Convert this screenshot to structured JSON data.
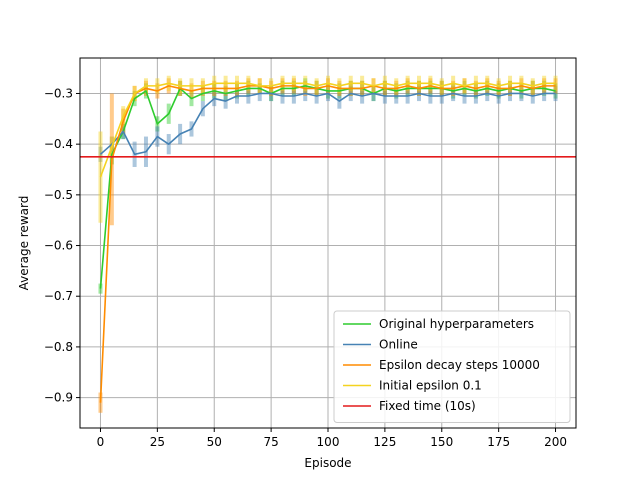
{
  "chart_data": {
    "type": "line",
    "title": "",
    "xlabel": "Episode",
    "ylabel": "Average reward",
    "xlim": [
      -9,
      209
    ],
    "ylim": [
      -0.96,
      -0.23
    ],
    "xticks": [
      0,
      25,
      50,
      75,
      100,
      125,
      150,
      175,
      200
    ],
    "yticks": [
      -0.9,
      -0.8,
      -0.7,
      -0.6,
      -0.5,
      -0.4,
      -0.3
    ],
    "ytick_labels": [
      "−0.9",
      "−0.8",
      "−0.7",
      "−0.6",
      "−0.5",
      "−0.4",
      "−0.3"
    ],
    "grid": true,
    "legend_position": "lower-right",
    "x": [
      0,
      5,
      10,
      15,
      20,
      25,
      30,
      35,
      40,
      45,
      50,
      55,
      60,
      65,
      70,
      75,
      80,
      85,
      90,
      95,
      100,
      105,
      110,
      115,
      120,
      125,
      130,
      135,
      140,
      145,
      150,
      155,
      160,
      165,
      170,
      175,
      180,
      185,
      190,
      195,
      200
    ],
    "series": [
      {
        "name": "Original hyperparameters",
        "color": "#2ecc2e",
        "values": [
          -0.685,
          -0.42,
          -0.375,
          -0.31,
          -0.295,
          -0.36,
          -0.34,
          -0.29,
          -0.31,
          -0.3,
          -0.295,
          -0.3,
          -0.295,
          -0.29,
          -0.29,
          -0.3,
          -0.29,
          -0.29,
          -0.285,
          -0.29,
          -0.295,
          -0.295,
          -0.29,
          -0.29,
          -0.3,
          -0.29,
          -0.295,
          -0.29,
          -0.29,
          -0.29,
          -0.29,
          -0.295,
          -0.29,
          -0.295,
          -0.29,
          -0.295,
          -0.29,
          -0.295,
          -0.29,
          -0.29,
          -0.295
        ],
        "errors": [
          0.01,
          0.02,
          0.015,
          0.015,
          0.015,
          0.015,
          0.02,
          0.015,
          0.015,
          0.015,
          0.015,
          0.015,
          0.015,
          0.015,
          0.01,
          0.015,
          0.015,
          0.015,
          0.015,
          0.015,
          0.015,
          0.015,
          0.015,
          0.015,
          0.015,
          0.015,
          0.015,
          0.015,
          0.015,
          0.015,
          0.015,
          0.015,
          0.015,
          0.015,
          0.015,
          0.015,
          0.015,
          0.015,
          0.015,
          0.015,
          0.015
        ]
      },
      {
        "name": "Online",
        "color": "#4682b4",
        "values": [
          -0.42,
          -0.4,
          -0.375,
          -0.42,
          -0.415,
          -0.385,
          -0.4,
          -0.38,
          -0.37,
          -0.33,
          -0.31,
          -0.315,
          -0.305,
          -0.305,
          -0.3,
          -0.3,
          -0.305,
          -0.305,
          -0.3,
          -0.305,
          -0.3,
          -0.315,
          -0.3,
          -0.305,
          -0.3,
          -0.305,
          -0.305,
          -0.305,
          -0.3,
          -0.305,
          -0.305,
          -0.3,
          -0.305,
          -0.305,
          -0.3,
          -0.305,
          -0.3,
          -0.3,
          -0.305,
          -0.3,
          -0.3
        ],
        "errors": [
          0.015,
          0.015,
          0.015,
          0.025,
          0.03,
          0.02,
          0.02,
          0.02,
          0.015,
          0.015,
          0.015,
          0.015,
          0.015,
          0.015,
          0.015,
          0.015,
          0.015,
          0.015,
          0.015,
          0.015,
          0.015,
          0.015,
          0.015,
          0.015,
          0.015,
          0.015,
          0.015,
          0.015,
          0.015,
          0.015,
          0.015,
          0.015,
          0.015,
          0.015,
          0.015,
          0.015,
          0.015,
          0.015,
          0.015,
          0.015,
          0.015
        ]
      },
      {
        "name": "Epsilon decay steps 10000",
        "color": "#ff8c00",
        "values": [
          -0.91,
          -0.43,
          -0.355,
          -0.3,
          -0.29,
          -0.295,
          -0.285,
          -0.29,
          -0.295,
          -0.29,
          -0.29,
          -0.29,
          -0.29,
          -0.285,
          -0.285,
          -0.29,
          -0.285,
          -0.285,
          -0.29,
          -0.29,
          -0.285,
          -0.29,
          -0.29,
          -0.29,
          -0.285,
          -0.29,
          -0.29,
          -0.285,
          -0.29,
          -0.285,
          -0.29,
          -0.29,
          -0.285,
          -0.29,
          -0.285,
          -0.29,
          -0.29,
          -0.285,
          -0.29,
          -0.285,
          -0.285
        ],
        "errors": [
          0.02,
          0.13,
          0.025,
          0.015,
          0.015,
          0.015,
          0.015,
          0.015,
          0.015,
          0.015,
          0.015,
          0.015,
          0.015,
          0.015,
          0.015,
          0.015,
          0.015,
          0.015,
          0.015,
          0.015,
          0.015,
          0.015,
          0.015,
          0.015,
          0.015,
          0.015,
          0.015,
          0.015,
          0.015,
          0.015,
          0.015,
          0.015,
          0.015,
          0.015,
          0.015,
          0.015,
          0.015,
          0.015,
          0.015,
          0.015,
          0.015
        ]
      },
      {
        "name": "Initial epsilon 0.1",
        "color": "#f4d320",
        "values": [
          -0.465,
          -0.405,
          -0.345,
          -0.3,
          -0.285,
          -0.285,
          -0.28,
          -0.285,
          -0.285,
          -0.285,
          -0.28,
          -0.28,
          -0.28,
          -0.28,
          -0.285,
          -0.285,
          -0.28,
          -0.28,
          -0.28,
          -0.285,
          -0.28,
          -0.285,
          -0.28,
          -0.28,
          -0.285,
          -0.28,
          -0.285,
          -0.28,
          -0.28,
          -0.28,
          -0.285,
          -0.28,
          -0.285,
          -0.28,
          -0.28,
          -0.285,
          -0.28,
          -0.28,
          -0.285,
          -0.28,
          -0.28
        ],
        "errors": [
          0.09,
          0.02,
          0.02,
          0.015,
          0.015,
          0.015,
          0.015,
          0.015,
          0.015,
          0.015,
          0.015,
          0.015,
          0.015,
          0.015,
          0.015,
          0.015,
          0.015,
          0.015,
          0.015,
          0.015,
          0.015,
          0.015,
          0.015,
          0.015,
          0.015,
          0.015,
          0.015,
          0.015,
          0.015,
          0.015,
          0.015,
          0.015,
          0.015,
          0.015,
          0.015,
          0.015,
          0.015,
          0.015,
          0.015,
          0.015,
          0.015
        ]
      }
    ],
    "reference_line": {
      "name": "Fixed time (10s)",
      "color": "#e41a1c",
      "y": -0.425
    }
  }
}
